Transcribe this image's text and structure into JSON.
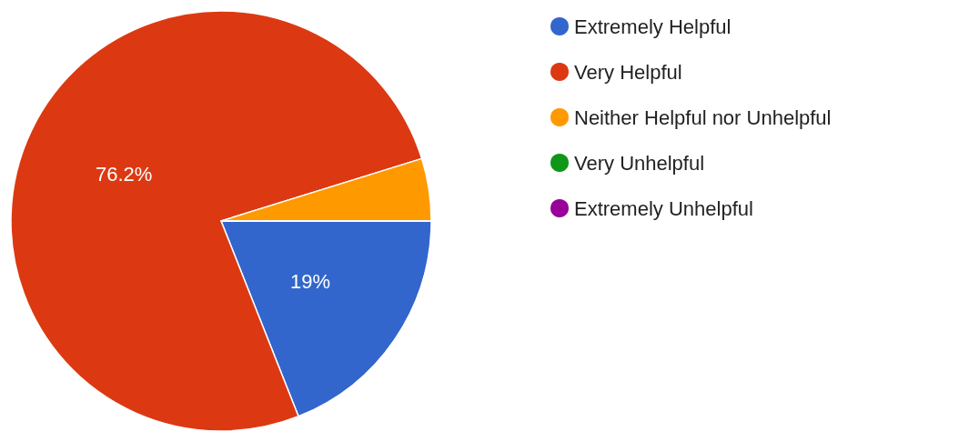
{
  "chart_data": {
    "type": "pie",
    "categories": [
      "Extremely Helpful",
      "Very Helpful",
      "Neither Helpful nor Unhelpful",
      "Very Unhelpful",
      "Extremely Unhelpful"
    ],
    "values": [
      19,
      76.2,
      4.8,
      0,
      0
    ],
    "colors": [
      "#3366cc",
      "#dc3912",
      "#ff9900",
      "#109618",
      "#990099"
    ],
    "value_labels": [
      "19%",
      "76.2%",
      null,
      null,
      null
    ],
    "legend": "top right"
  }
}
